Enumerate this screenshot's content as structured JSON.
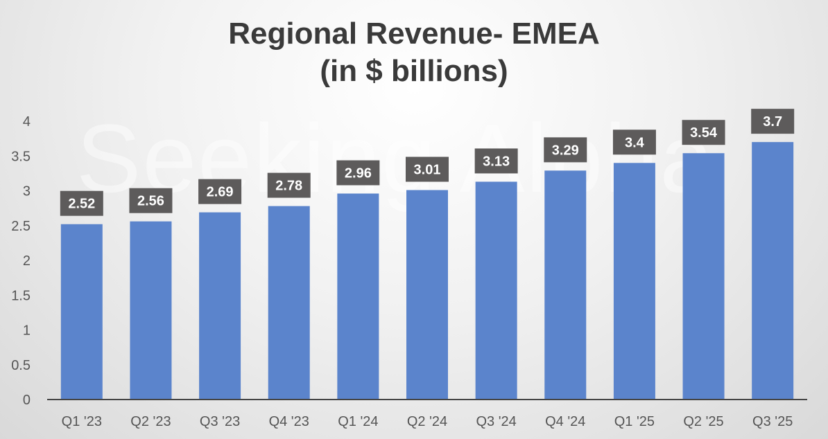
{
  "chart_data": {
    "type": "bar",
    "title": "Regional Revenue- EMEA",
    "subtitle": "(in $ billions)",
    "categories": [
      "Q1 '23",
      "Q2 '23",
      "Q3 '23",
      "Q4 '23",
      "Q1 '24",
      "Q2 '24",
      "Q3 '24",
      "Q4 '24",
      "Q1 '25",
      "Q2 '25",
      "Q3 '25"
    ],
    "values": [
      2.52,
      2.56,
      2.69,
      2.78,
      2.96,
      3.01,
      3.13,
      3.29,
      3.4,
      3.54,
      3.7
    ],
    "data_labels": [
      "2.52",
      "2.56",
      "2.69",
      "2.78",
      "2.96",
      "3.01",
      "3.13",
      "3.29",
      "3.4",
      "3.54",
      "3.7"
    ],
    "yticks": [
      "0",
      "0.5",
      "1",
      "1.5",
      "2",
      "2.5",
      "3",
      "3.5",
      "4"
    ],
    "ylim": [
      0,
      4
    ],
    "xlabel": "",
    "ylabel": "",
    "grid": false,
    "bar_color": "#5b84cc",
    "label_box_color": "#5d5b5b"
  },
  "watermark": "Seeking Alpha"
}
